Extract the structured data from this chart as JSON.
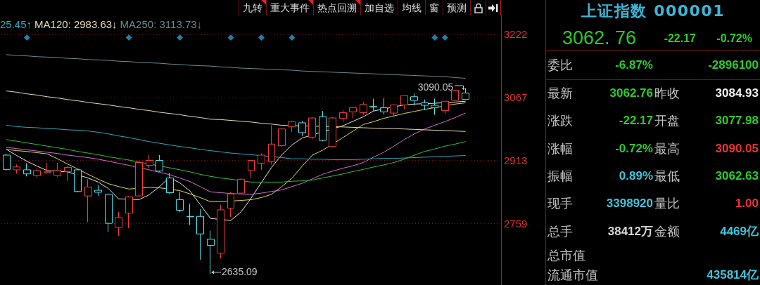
{
  "chart_data": [
    {
      "type": "other",
      "annotations": [
        "九转",
        "重大事件",
        "热点回溯",
        "加自选",
        "均线",
        "窗",
        "预测"
      ]
    },
    {
      "type": "candlestick",
      "categories": [
        null,
        null,
        null,
        null,
        null,
        null,
        null,
        null,
        null,
        null,
        null,
        null,
        null,
        null,
        null,
        null,
        null,
        null,
        null,
        null,
        null,
        null,
        null,
        null,
        null,
        null,
        null,
        null,
        null,
        null,
        null,
        null,
        null,
        null,
        null,
        null,
        null,
        null,
        null,
        null,
        null,
        null,
        null,
        null,
        null,
        null
      ],
      "ohlc": [
        [
          2926,
          2929,
          2888,
          2891
        ],
        [
          2890,
          2903,
          2881,
          2897
        ],
        [
          2890,
          2906,
          2874,
          2880
        ],
        [
          2876,
          2893,
          2871,
          2888
        ],
        [
          2883,
          2907,
          2881,
          2885
        ],
        [
          2876,
          2907,
          2873,
          2889
        ],
        [
          2886,
          2899,
          2863,
          2896
        ],
        [
          2890,
          2892,
          2835,
          2837
        ],
        [
          2826,
          2867,
          2762,
          2848
        ],
        [
          2840,
          2853,
          2826,
          2835
        ],
        [
          2830,
          2832,
          2738,
          2759
        ],
        [
          2749,
          2787,
          2728,
          2773
        ],
        [
          2784,
          2826,
          2747,
          2824
        ],
        [
          2826,
          2910,
          2824,
          2908
        ],
        [
          2901,
          2926,
          2894,
          2913
        ],
        [
          2913,
          2926,
          2885,
          2887
        ],
        [
          2870,
          2883,
          2831,
          2834
        ],
        [
          2817,
          2836,
          2787,
          2791
        ],
        [
          2776,
          2807,
          2755,
          2775
        ],
        [
          2776,
          2794,
          2670,
          2733
        ],
        [
          2720,
          2741,
          2635.09,
          2705
        ],
        [
          2686,
          2804,
          2673,
          2792
        ],
        [
          2796,
          2836,
          2774,
          2831
        ],
        [
          2833,
          2869,
          2830,
          2867
        ],
        [
          2888,
          2914,
          2870,
          2913
        ],
        [
          2906,
          2930,
          2890,
          2926
        ],
        [
          2910,
          2999,
          2903,
          2953
        ],
        [
          2949,
          2992,
          2947,
          2990
        ],
        [
          2996,
          3010,
          2983,
          3008
        ],
        [
          3005,
          3010,
          2973,
          2981
        ],
        [
          2970,
          3019,
          2965,
          3017
        ],
        [
          3020,
          3034,
          2960,
          2962
        ],
        [
          2947,
          3019,
          2945,
          3017
        ],
        [
          3016,
          3036,
          3008,
          3030
        ],
        [
          3032,
          3044,
          3016,
          3042
        ],
        [
          3030,
          3056,
          3025,
          3050
        ],
        [
          3045,
          3064,
          3035,
          3044
        ],
        [
          3042,
          3065,
          3026,
          3032
        ],
        [
          3029,
          3050,
          3022,
          3049
        ],
        [
          3049,
          3073,
          3039,
          3072
        ],
        [
          3069,
          3077,
          3048,
          3060
        ],
        [
          3054,
          3062,
          3036,
          3048
        ],
        [
          3048,
          3064,
          3025,
          3042
        ],
        [
          3035,
          3059,
          3027,
          3058
        ],
        [
          3060,
          3086,
          3058,
          3084.93
        ],
        [
          3077.98,
          3090.05,
          3062.63,
          3062.76
        ]
      ],
      "colors": [
        "#54e4ee",
        "#f03c3c",
        "#54e4ee",
        "#f03c3c",
        "#f03c3c",
        "#f03c3c",
        "#f03c3c",
        "#54e4ee",
        "#f03c3c",
        "#54e4ee",
        "#54e4ee",
        "#f03c3c",
        "#f03c3c",
        "#f03c3c",
        "#f03c3c",
        "#54e4ee",
        "#54e4ee",
        "#54e4ee",
        "#54e4ee",
        "#54e4ee",
        "#54e4ee",
        "#f03c3c",
        "#f03c3c",
        "#f03c3c",
        "#f03c3c",
        "#f03c3c",
        "#f03c3c",
        "#f03c3c",
        "#f03c3c",
        "#54e4ee",
        "#f03c3c",
        "#54e4ee",
        "#f03c3c",
        "#f03c3c",
        "#f03c3c",
        "#f03c3c",
        "#54e4ee",
        "#54e4ee",
        "#f03c3c",
        "#f03c3c",
        "#54e4ee",
        "#54e4ee",
        "#54e4ee",
        "#f03c3c",
        "#f03c3c",
        "#54e4ee"
      ],
      "series": [
        {
          "type": "line",
          "color": "#e6e6e6",
          "values": [
            2940,
            2925,
            2911,
            2899,
            2888,
            null,
            2885,
            null,
            2870,
            2860,
            2844,
            2819,
            null,
            2817,
            2829,
            2849,
            2871,
            2858,
            2838,
            2805,
            2771,
            null,
            2766,
            2787,
            2821,
            2859,
            2896,
            2927,
            2951,
            2968,
            null,
            null,
            null,
            2998,
            3009,
            3020,
            3034,
            null,
            null,
            3049,
            3051,
            null,
            3053,
            null,
            3056,
            3058
          ]
        },
        {
          "type": "line",
          "color": "#e2dc48",
          "values": [
            2940,
            2937,
            2935,
            2932,
            2929,
            2917,
            2904,
            2892,
            2879,
            2867,
            2856,
            2849,
            2843,
            null,
            2847,
            2846,
            null,
            2839,
            2831,
            2822,
            2812,
            2812,
            null,
            2815,
            2817,
            2822,
            2830,
            2849,
            2870,
            2899,
            2926,
            2938,
            null,
            2969,
            2985,
            3001,
            3008,
            3016,
            3022,
            3028,
            3033,
            3038,
            null,
            null,
            3051,
            3054
          ]
        },
        {
          "type": "line",
          "color": "#d46ed4",
          "values": [
            2945,
            2942,
            2939,
            2936,
            2933,
            2930,
            2926,
            2923,
            2920,
            2916,
            2911,
            2906,
            2901,
            null,
            2890,
            2884,
            2878,
            2870,
            2861,
            2849,
            2836,
            2834,
            2832,
            2831,
            2830,
            2833,
            2837,
            2841,
            2849,
            2857,
            2868,
            2879,
            2887,
            2894,
            2900,
            2908,
            2921,
            2933,
            2948,
            2964,
            2978,
            2990,
            2999,
            3008,
            3018,
            3029
          ]
        },
        {
          "type": "line",
          "color": "#2ec42e",
          "values": [
            2964,
            2960,
            2956,
            2952,
            2948,
            2944,
            2940,
            2935,
            2931,
            2927,
            2922,
            2918,
            2914,
            2909,
            null,
            null,
            2895,
            2890,
            2885,
            2879,
            2874,
            2870,
            2867,
            null,
            2860,
            2860,
            2860,
            2860,
            2862,
            2863,
            2865,
            2870,
            2875,
            2880,
            2886,
            2891,
            2897,
            2902,
            2908,
            2916,
            2926,
            2935,
            2941,
            2948,
            2953,
            2959
          ]
        },
        {
          "type": "line",
          "name": "25.45↑",
          "color": "#2ea8bc",
          "values": [
            2999,
            2996,
            2994,
            2993,
            2991,
            2990,
            2988,
            2987,
            2985,
            2982,
            2978,
            2973,
            2969,
            2964,
            2959,
            2955,
            2951,
            2947,
            2944,
            2940,
            2937,
            2934,
            2931,
            2929,
            2927,
            null,
            null,
            2920,
            2917,
            2917,
            2916,
            2916,
            2915,
            2915,
            2915,
            2916,
            2917,
            2918,
            2918,
            2919,
            2920,
            2921,
            2922,
            2923,
            2924,
            2925
          ]
        },
        {
          "type": "line",
          "name": "MA120: 2983.63↓",
          "color": "#e4dcb4",
          "values": [
            3083,
            3080,
            3076,
            3073,
            3069,
            3066,
            3062,
            3059,
            3055,
            3052,
            3049,
            3045,
            3042,
            3038,
            3035,
            3031,
            3028,
            3025,
            3021,
            3018,
            3014,
            3013,
            3011,
            3009,
            3007,
            3004,
            3002,
            2999,
            null,
            null,
            null,
            null,
            null,
            2995,
            2994,
            2993,
            2992,
            2991,
            2991,
            2990,
            2989,
            2988,
            2987,
            2986,
            2985,
            2984
          ]
        },
        {
          "type": "line",
          "name": "MA250: 3113.73↓",
          "color": "#6a8c8c",
          "values": [
            3172,
            3170,
            3169,
            3167,
            3166,
            3165,
            3163,
            3162,
            3160,
            3159,
            3158,
            3156,
            3155,
            3153,
            3152,
            3151,
            3149,
            3148,
            3146,
            3145,
            3144,
            3142,
            3141,
            3139,
            3138,
            3137,
            3136,
            3135,
            3134,
            3132,
            3131,
            3130,
            3129,
            3128,
            3127,
            3126,
            3125,
            3124,
            3123,
            3122,
            3121,
            3120,
            3119,
            3118,
            3116,
            3114
          ]
        },
        {
          "type": "scatter",
          "marker": "diamond",
          "color": "#2a9fd6",
          "values": [
            null,
            null,
            3214,
            null,
            null,
            null,
            null,
            null,
            null,
            null,
            null,
            null,
            3214,
            null,
            null,
            null,
            null,
            3214,
            null,
            null,
            null,
            null,
            3214,
            null,
            null,
            3214,
            null,
            null,
            3214,
            null,
            null,
            null,
            null,
            null,
            null,
            null,
            null,
            null,
            null,
            null,
            null,
            null,
            3214,
            3214,
            null,
            null
          ]
        }
      ],
      "ylim": [
        2608,
        3268
      ],
      "yticks": [
        2759,
        2913,
        3067,
        3222
      ],
      "grid": "y",
      "legend": "top left",
      "tick_labels": "y",
      "annotations": [
        "3090.05",
        "2635.09"
      ]
    },
    {
      "type": "other",
      "title": "上证指数 000001",
      "annotations": [
        "3062. 76",
        "-22.17",
        "-0.72%",
        "委比",
        "-6.87%",
        "-2896100",
        "最新",
        "3062.76",
        "昨收",
        "3084.93",
        "涨跌",
        "-22.17",
        "开盘",
        "3077.98",
        "涨幅",
        "-0.72%",
        "最高",
        "3090.05",
        "振幅",
        "0.89%",
        "最低",
        "3062.63",
        "现手",
        "3398920",
        "量比",
        "1.00",
        "总手",
        "38412万",
        "金额",
        "4469亿",
        "总市值",
        "流通市值",
        "435814亿"
      ],
      "colors": [
        "#2ccc2c",
        "#2ccc2c",
        "#2ccc2c",
        "#c4c4c4",
        "#2ccc2c",
        "#2ccc2c",
        "#c4c4c4",
        "#2ccc2c",
        "#c4c4c4",
        "#f2f2f2",
        "#c4c4c4",
        "#2ccc2c",
        "#c4c4c4",
        "#2ccc2c",
        "#c4c4c4",
        "#2ccc2c",
        "#c4c4c4",
        "#e83434",
        "#c4c4c4",
        "#40c4dc",
        "#c4c4c4",
        "#2ccc2c",
        "#c4c4c4",
        "#40c4dc",
        "#c4c4c4",
        "#e83434",
        "#c4c4c4",
        "#d6d6d6",
        "#c4c4c4",
        "#40c4dc",
        "#c4c4c4",
        "#c4c4c4",
        "#40c4dc"
      ]
    }
  ]
}
